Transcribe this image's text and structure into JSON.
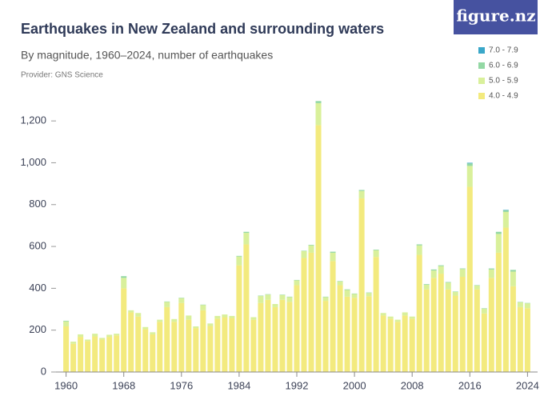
{
  "logo": "figure.nz",
  "chart_data": {
    "type": "stacked-bar",
    "title": "Earthquakes in New Zealand and surrounding waters",
    "subtitle": "By magnitude, 1960–2024, number of earthquakes",
    "provider": "Provider: GNS Science",
    "x": [
      1960,
      1961,
      1962,
      1963,
      1964,
      1965,
      1966,
      1967,
      1968,
      1969,
      1970,
      1971,
      1972,
      1973,
      1974,
      1975,
      1976,
      1977,
      1978,
      1979,
      1980,
      1981,
      1982,
      1983,
      1984,
      1985,
      1986,
      1987,
      1988,
      1989,
      1990,
      1991,
      1992,
      1993,
      1994,
      1995,
      1996,
      1997,
      1998,
      1999,
      2000,
      2001,
      2002,
      2003,
      2004,
      2005,
      2006,
      2007,
      2008,
      2009,
      2010,
      2011,
      2012,
      2013,
      2014,
      2015,
      2016,
      2017,
      2018,
      2019,
      2020,
      2021,
      2022,
      2023,
      2024
    ],
    "xlim": [
      1958.6,
      2025.4
    ],
    "xticks": [
      1960,
      1968,
      1976,
      1984,
      1992,
      2000,
      2008,
      2016,
      2024
    ],
    "ylim": [
      0,
      1300
    ],
    "yticks": [
      0,
      200,
      400,
      600,
      800,
      {
        "value": 1000,
        "label": "1,000"
      },
      {
        "value": 1200,
        "label": "1,200"
      }
    ],
    "grid": false,
    "legend": "top-right",
    "series": [
      {
        "name": "4.0 - 4.9",
        "color": "#f3ea7e",
        "values": [
          218,
          135,
          168,
          148,
          170,
          155,
          168,
          175,
          400,
          285,
          265,
          205,
          180,
          240,
          310,
          240,
          330,
          250,
          210,
          295,
          220,
          255,
          262,
          258,
          510,
          610,
          250,
          330,
          345,
          310,
          345,
          335,
          415,
          545,
          570,
          1180,
          340,
          530,
          415,
          360,
          355,
          830,
          362,
          550,
          270,
          255,
          240,
          270,
          255,
          560,
          395,
          450,
          470,
          395,
          365,
          455,
          885,
          395,
          280,
          450,
          570,
          690,
          410,
          310,
          305
        ]
      },
      {
        "name": "5.0 - 5.9",
        "color": "#d9f09b",
        "values": [
          24,
          10,
          12,
          7,
          13,
          8,
          10,
          8,
          50,
          10,
          17,
          10,
          10,
          10,
          25,
          13,
          23,
          20,
          8,
          25,
          12,
          13,
          13,
          10,
          42,
          55,
          12,
          33,
          25,
          15,
          23,
          23,
          23,
          33,
          35,
          105,
          18,
          40,
          18,
          32,
          18,
          35,
          16,
          32,
          12,
          10,
          10,
          15,
          10,
          45,
          22,
          35,
          36,
          32,
          18,
          37,
          100,
          18,
          23,
          40,
          90,
          75,
          70,
          23,
          23
        ]
      },
      {
        "name": "6.0 - 6.9",
        "color": "#93d8a4",
        "values": [
          3,
          0,
          0,
          0,
          0,
          0,
          0,
          0,
          8,
          0,
          0,
          0,
          0,
          0,
          2,
          0,
          2,
          0,
          0,
          2,
          0,
          0,
          0,
          0,
          3,
          5,
          0,
          2,
          2,
          0,
          2,
          2,
          2,
          2,
          3,
          10,
          2,
          5,
          2,
          3,
          2,
          5,
          2,
          3,
          0,
          0,
          0,
          0,
          0,
          5,
          3,
          5,
          4,
          3,
          2,
          3,
          12,
          2,
          2,
          5,
          10,
          8,
          8,
          2,
          2
        ]
      },
      {
        "name": "7.0 - 7.9",
        "color": "#3aa7c9",
        "values": [
          0,
          0,
          0,
          0,
          0,
          0,
          0,
          0,
          0,
          0,
          0,
          0,
          0,
          0,
          0,
          0,
          0,
          0,
          0,
          0,
          0,
          0,
          0,
          0,
          0,
          0,
          0,
          0,
          0,
          0,
          0,
          0,
          0,
          0,
          0,
          0,
          0,
          0,
          0,
          0,
          0,
          0,
          0,
          0,
          0,
          0,
          0,
          0,
          0,
          0,
          0,
          0,
          0,
          0,
          0,
          0,
          3,
          0,
          0,
          0,
          0,
          2,
          0,
          0,
          0
        ]
      }
    ]
  }
}
